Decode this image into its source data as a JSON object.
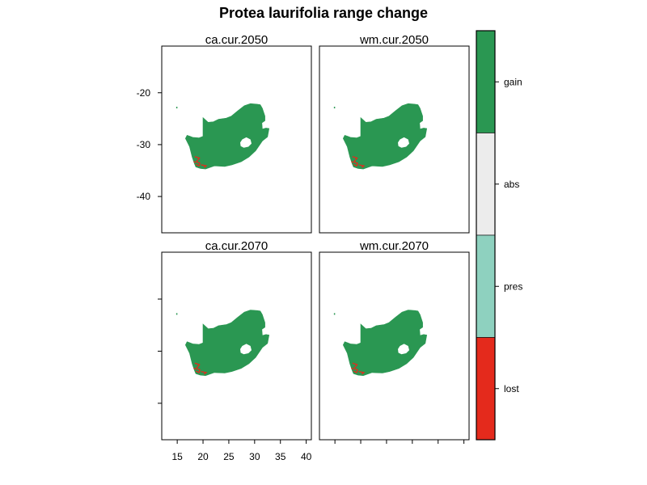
{
  "chart_data": {
    "type": "map",
    "title": "Protea laurifolia range change",
    "panels": [
      {
        "name": "ca.cur.2050"
      },
      {
        "name": "wm.cur.2050"
      },
      {
        "name": "ca.cur.2070"
      },
      {
        "name": "wm.cur.2070"
      }
    ],
    "x_ticks": [
      15,
      20,
      25,
      30,
      35,
      40
    ],
    "y_ticks": [
      -20,
      -30,
      -40
    ],
    "xlim": [
      12,
      41
    ],
    "ylim": [
      -47,
      -11
    ],
    "legend": {
      "categories": [
        {
          "label": "gain",
          "color": "#2a9752"
        },
        {
          "label": "abs",
          "color": "#ececec"
        },
        {
          "label": "pres",
          "color": "#8ed1bf"
        },
        {
          "label": "lost",
          "color": "#e42a1c"
        }
      ]
    }
  }
}
